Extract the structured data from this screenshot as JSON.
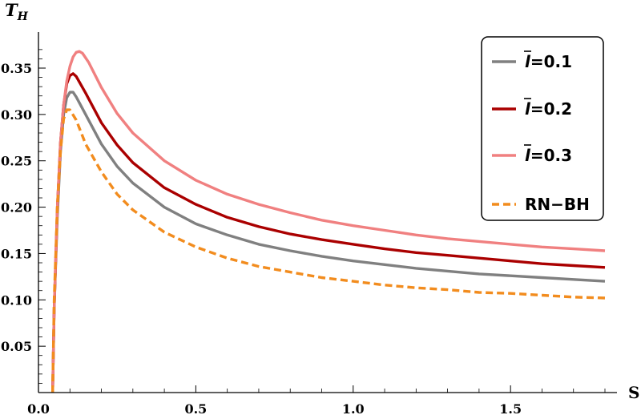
{
  "chart_data": {
    "type": "line",
    "xlabel": "S",
    "ylabel": "T",
    "ylabel_sub": "H",
    "xlim": [
      0.0,
      1.8
    ],
    "ylim": [
      0.0,
      0.38
    ],
    "xticks": [
      0.0,
      0.5,
      1.0,
      1.5
    ],
    "xtick_labels": [
      "0.0",
      "0.5",
      "1.0",
      "1.5"
    ],
    "yticks": [
      0.05,
      0.1,
      0.15,
      0.2,
      0.25,
      0.3,
      0.35
    ],
    "ytick_labels": [
      "0.05",
      "0.10",
      "0.15",
      "0.20",
      "0.25",
      "0.30",
      "0.35"
    ],
    "grid": false,
    "legend_position": "top-right",
    "series": [
      {
        "name": "l̄=0.1",
        "legend_symbol": "l",
        "legend_value": "=0.1",
        "color": "#808080",
        "dash": "solid",
        "points": [
          [
            0.045,
            0.0
          ],
          [
            0.05,
            0.09
          ],
          [
            0.06,
            0.19
          ],
          [
            0.07,
            0.26
          ],
          [
            0.08,
            0.3
          ],
          [
            0.09,
            0.318
          ],
          [
            0.1,
            0.324
          ],
          [
            0.11,
            0.324
          ],
          [
            0.12,
            0.319
          ],
          [
            0.15,
            0.3
          ],
          [
            0.2,
            0.268
          ],
          [
            0.25,
            0.244
          ],
          [
            0.3,
            0.226
          ],
          [
            0.4,
            0.2
          ],
          [
            0.5,
            0.182
          ],
          [
            0.6,
            0.17
          ],
          [
            0.7,
            0.16
          ],
          [
            0.8,
            0.153
          ],
          [
            0.9,
            0.147
          ],
          [
            1.0,
            0.142
          ],
          [
            1.1,
            0.138
          ],
          [
            1.2,
            0.134
          ],
          [
            1.3,
            0.131
          ],
          [
            1.4,
            0.128
          ],
          [
            1.5,
            0.126
          ],
          [
            1.6,
            0.124
          ],
          [
            1.7,
            0.122
          ],
          [
            1.8,
            0.12
          ]
        ]
      },
      {
        "name": "l̄=0.2",
        "legend_symbol": "l",
        "legend_value": "=0.2",
        "color": "#aa0000",
        "dash": "solid",
        "points": [
          [
            0.045,
            0.0
          ],
          [
            0.05,
            0.09
          ],
          [
            0.06,
            0.2
          ],
          [
            0.07,
            0.27
          ],
          [
            0.08,
            0.31
          ],
          [
            0.09,
            0.333
          ],
          [
            0.1,
            0.342
          ],
          [
            0.11,
            0.344
          ],
          [
            0.12,
            0.341
          ],
          [
            0.15,
            0.323
          ],
          [
            0.2,
            0.291
          ],
          [
            0.25,
            0.267
          ],
          [
            0.3,
            0.248
          ],
          [
            0.4,
            0.221
          ],
          [
            0.5,
            0.203
          ],
          [
            0.6,
            0.189
          ],
          [
            0.7,
            0.179
          ],
          [
            0.8,
            0.171
          ],
          [
            0.9,
            0.165
          ],
          [
            1.0,
            0.16
          ],
          [
            1.1,
            0.155
          ],
          [
            1.2,
            0.151
          ],
          [
            1.3,
            0.148
          ],
          [
            1.4,
            0.145
          ],
          [
            1.5,
            0.142
          ],
          [
            1.6,
            0.139
          ],
          [
            1.7,
            0.137
          ],
          [
            1.8,
            0.135
          ]
        ]
      },
      {
        "name": "l̄=0.3",
        "legend_symbol": "l",
        "legend_value": "=0.3",
        "color": "#f08080",
        "dash": "solid",
        "points": [
          [
            0.045,
            0.0
          ],
          [
            0.05,
            0.09
          ],
          [
            0.06,
            0.2
          ],
          [
            0.07,
            0.27
          ],
          [
            0.08,
            0.31
          ],
          [
            0.09,
            0.336
          ],
          [
            0.1,
            0.352
          ],
          [
            0.11,
            0.362
          ],
          [
            0.12,
            0.367
          ],
          [
            0.13,
            0.368
          ],
          [
            0.14,
            0.366
          ],
          [
            0.16,
            0.356
          ],
          [
            0.2,
            0.329
          ],
          [
            0.25,
            0.301
          ],
          [
            0.3,
            0.28
          ],
          [
            0.4,
            0.25
          ],
          [
            0.5,
            0.229
          ],
          [
            0.6,
            0.214
          ],
          [
            0.7,
            0.203
          ],
          [
            0.8,
            0.194
          ],
          [
            0.9,
            0.186
          ],
          [
            1.0,
            0.18
          ],
          [
            1.1,
            0.175
          ],
          [
            1.2,
            0.17
          ],
          [
            1.3,
            0.166
          ],
          [
            1.4,
            0.163
          ],
          [
            1.5,
            0.16
          ],
          [
            1.6,
            0.157
          ],
          [
            1.7,
            0.155
          ],
          [
            1.8,
            0.153
          ]
        ]
      },
      {
        "name": "RN−BH",
        "color": "#f28c1e",
        "dash": "dashed",
        "points": [
          [
            0.045,
            0.0
          ],
          [
            0.05,
            0.1
          ],
          [
            0.06,
            0.2
          ],
          [
            0.07,
            0.26
          ],
          [
            0.08,
            0.295
          ],
          [
            0.09,
            0.305
          ],
          [
            0.1,
            0.305
          ],
          [
            0.12,
            0.294
          ],
          [
            0.15,
            0.268
          ],
          [
            0.2,
            0.238
          ],
          [
            0.25,
            0.214
          ],
          [
            0.3,
            0.197
          ],
          [
            0.4,
            0.173
          ],
          [
            0.5,
            0.157
          ],
          [
            0.6,
            0.145
          ],
          [
            0.7,
            0.136
          ],
          [
            0.8,
            0.13
          ],
          [
            0.9,
            0.124
          ],
          [
            1.0,
            0.12
          ],
          [
            1.1,
            0.116
          ],
          [
            1.2,
            0.113
          ],
          [
            1.3,
            0.111
          ],
          [
            1.4,
            0.108
          ],
          [
            1.5,
            0.107
          ],
          [
            1.6,
            0.105
          ],
          [
            1.7,
            0.103
          ],
          [
            1.8,
            0.102
          ]
        ]
      }
    ]
  }
}
